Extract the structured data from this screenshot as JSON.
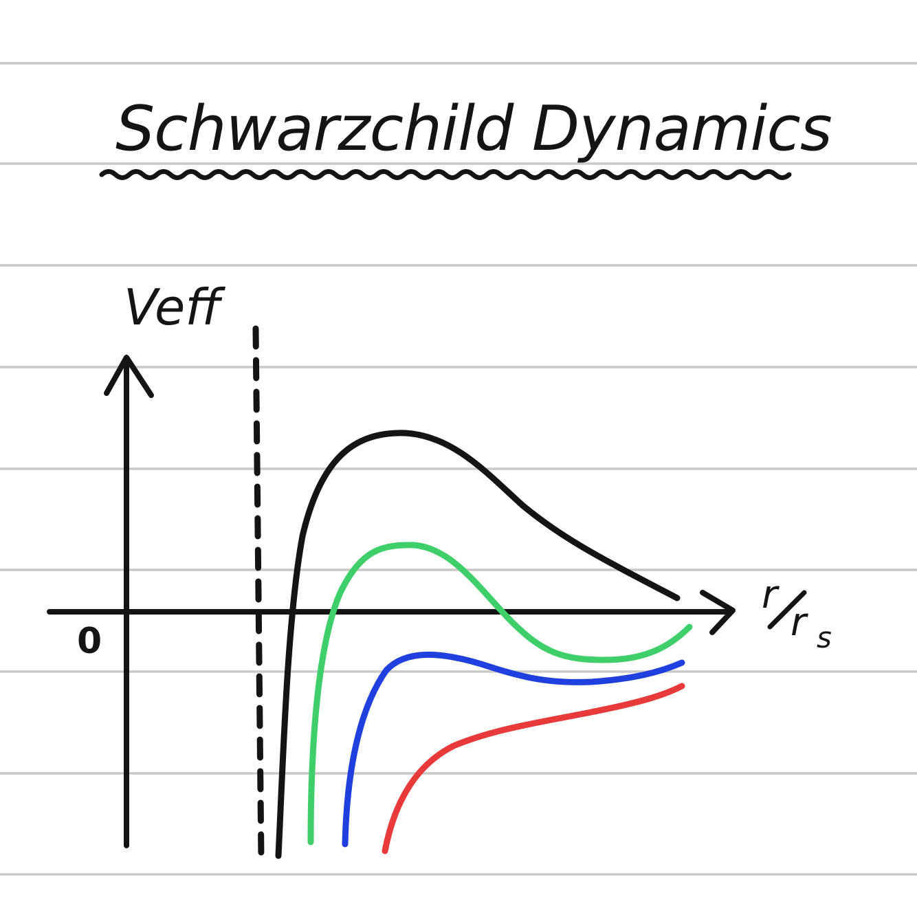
{
  "title": "Schwarzchild Dynamics",
  "axes": {
    "y_label": "Veff",
    "x_label_numerator": "r",
    "x_label_denominator": "r",
    "x_label_subscript": "s",
    "origin_label": "0"
  },
  "colors": {
    "ink": "#141414",
    "ruled_lines": "#c9c9c9",
    "curve_1": "#141414",
    "curve_2": "#3fcf6a",
    "curve_3": "#1f3fdf",
    "curve_4": "#e83a3a"
  }
}
